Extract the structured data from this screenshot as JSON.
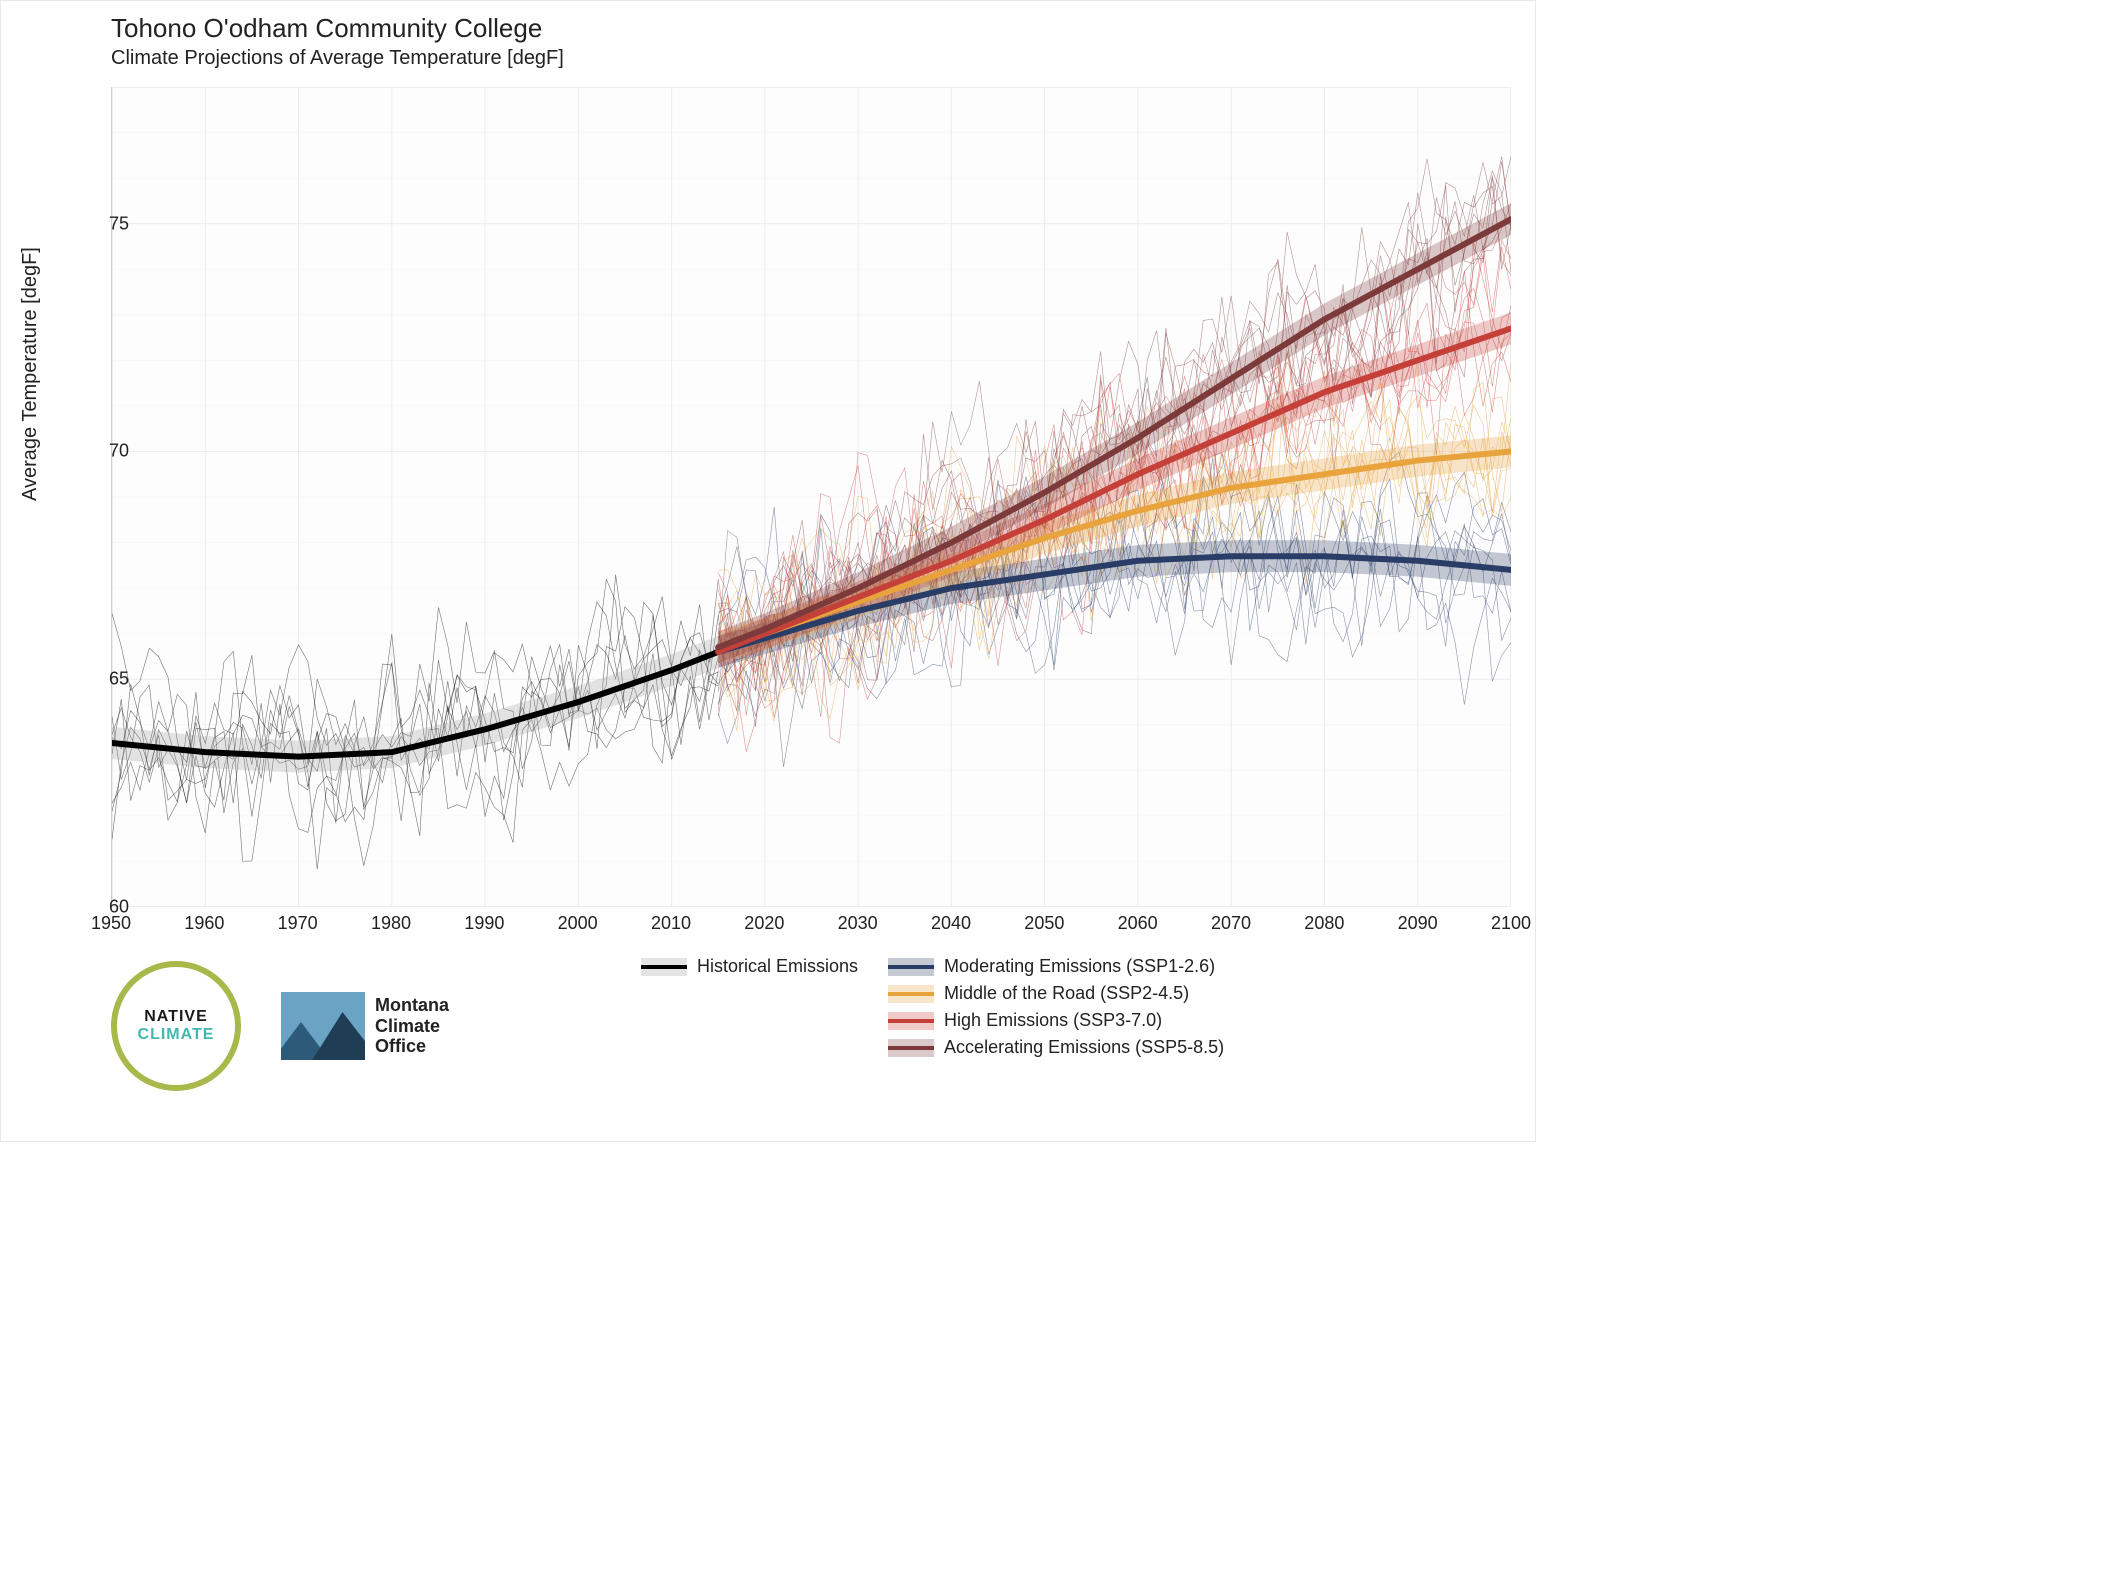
{
  "title": "Tohono O'odham Community College",
  "subtitle": "Climate Projections of Average Temperature [degF]",
  "ylabel": "Average Temperature [degF]",
  "chart": {
    "type": "line",
    "background_color": "#fdfdfd",
    "grid_color": "#ececec",
    "axis_color": "#d0d0d0",
    "xlim": [
      1950,
      2100
    ],
    "ylim": [
      60,
      78
    ],
    "xticks": [
      1950,
      1960,
      1970,
      1980,
      1990,
      2000,
      2010,
      2020,
      2030,
      2040,
      2050,
      2060,
      2070,
      2080,
      2090,
      2100
    ],
    "yticks": [
      60,
      65,
      70,
      75
    ],
    "transition_year": 2015,
    "title_fontsize": 26,
    "subtitle_fontsize": 20,
    "tick_fontsize": 18,
    "legend_fontsize": 18,
    "trend_line_width": 6,
    "confidence_band_opacity": 0.28,
    "ensemble_line_width": 0.6,
    "ensemble_line_opacity": 0.55,
    "ensemble_members_per_series": 8,
    "ensemble_noise_amplitude_degF": 1.4
  },
  "series": {
    "historical": {
      "label": "Historical Emissions",
      "color": "#000000",
      "band_color": "#9e9e9e",
      "years": [
        1950,
        1960,
        1970,
        1980,
        1990,
        2000,
        2010,
        2015
      ],
      "trend": [
        63.6,
        63.4,
        63.3,
        63.4,
        63.9,
        64.5,
        65.2,
        65.6
      ]
    },
    "ssp126": {
      "label": "Moderating Emissions (SSP1-2.6)",
      "color": "#2a3d66",
      "band_color": "#2a3d66",
      "years": [
        2015,
        2020,
        2030,
        2040,
        2050,
        2060,
        2070,
        2080,
        2090,
        2100
      ],
      "trend": [
        65.6,
        65.9,
        66.5,
        67.0,
        67.3,
        67.6,
        67.7,
        67.7,
        67.6,
        67.4
      ]
    },
    "ssp245": {
      "label": "Middle of the Road (SSP2-4.5)",
      "color": "#e8a33d",
      "band_color": "#e8a33d",
      "years": [
        2015,
        2020,
        2030,
        2040,
        2050,
        2060,
        2070,
        2080,
        2090,
        2100
      ],
      "trend": [
        65.7,
        66.0,
        66.7,
        67.4,
        68.1,
        68.7,
        69.2,
        69.5,
        69.8,
        70.0
      ]
    },
    "ssp370": {
      "label": "High Emissions (SSP3-7.0)",
      "color": "#c6403a",
      "band_color": "#c6403a",
      "years": [
        2015,
        2020,
        2030,
        2040,
        2050,
        2060,
        2070,
        2080,
        2090,
        2100
      ],
      "trend": [
        65.6,
        66.0,
        66.8,
        67.6,
        68.5,
        69.5,
        70.4,
        71.3,
        72.0,
        72.7
      ]
    },
    "ssp585": {
      "label": "Accelerating Emissions (SSP5-8.5)",
      "color": "#7d3a3a",
      "band_color": "#7d3a3a",
      "years": [
        2015,
        2020,
        2030,
        2040,
        2050,
        2060,
        2070,
        2080,
        2090,
        2100
      ],
      "trend": [
        65.7,
        66.1,
        67.0,
        68.0,
        69.1,
        70.3,
        71.6,
        72.9,
        74.0,
        75.1
      ]
    }
  },
  "legend_order": [
    "historical",
    "ssp126",
    "ssp245",
    "ssp370",
    "ssp585"
  ],
  "logos": {
    "native_climate": {
      "line1": "NATIVE",
      "line2": "CLIMATE",
      "ring_color": "#a8b84a",
      "text1_color": "#1a1a1a",
      "text2_color": "#3fb8af"
    },
    "mco": {
      "line1": "Montana",
      "line2": "Climate",
      "line3": "Office",
      "badge_bg": "#6ba3c4"
    }
  }
}
